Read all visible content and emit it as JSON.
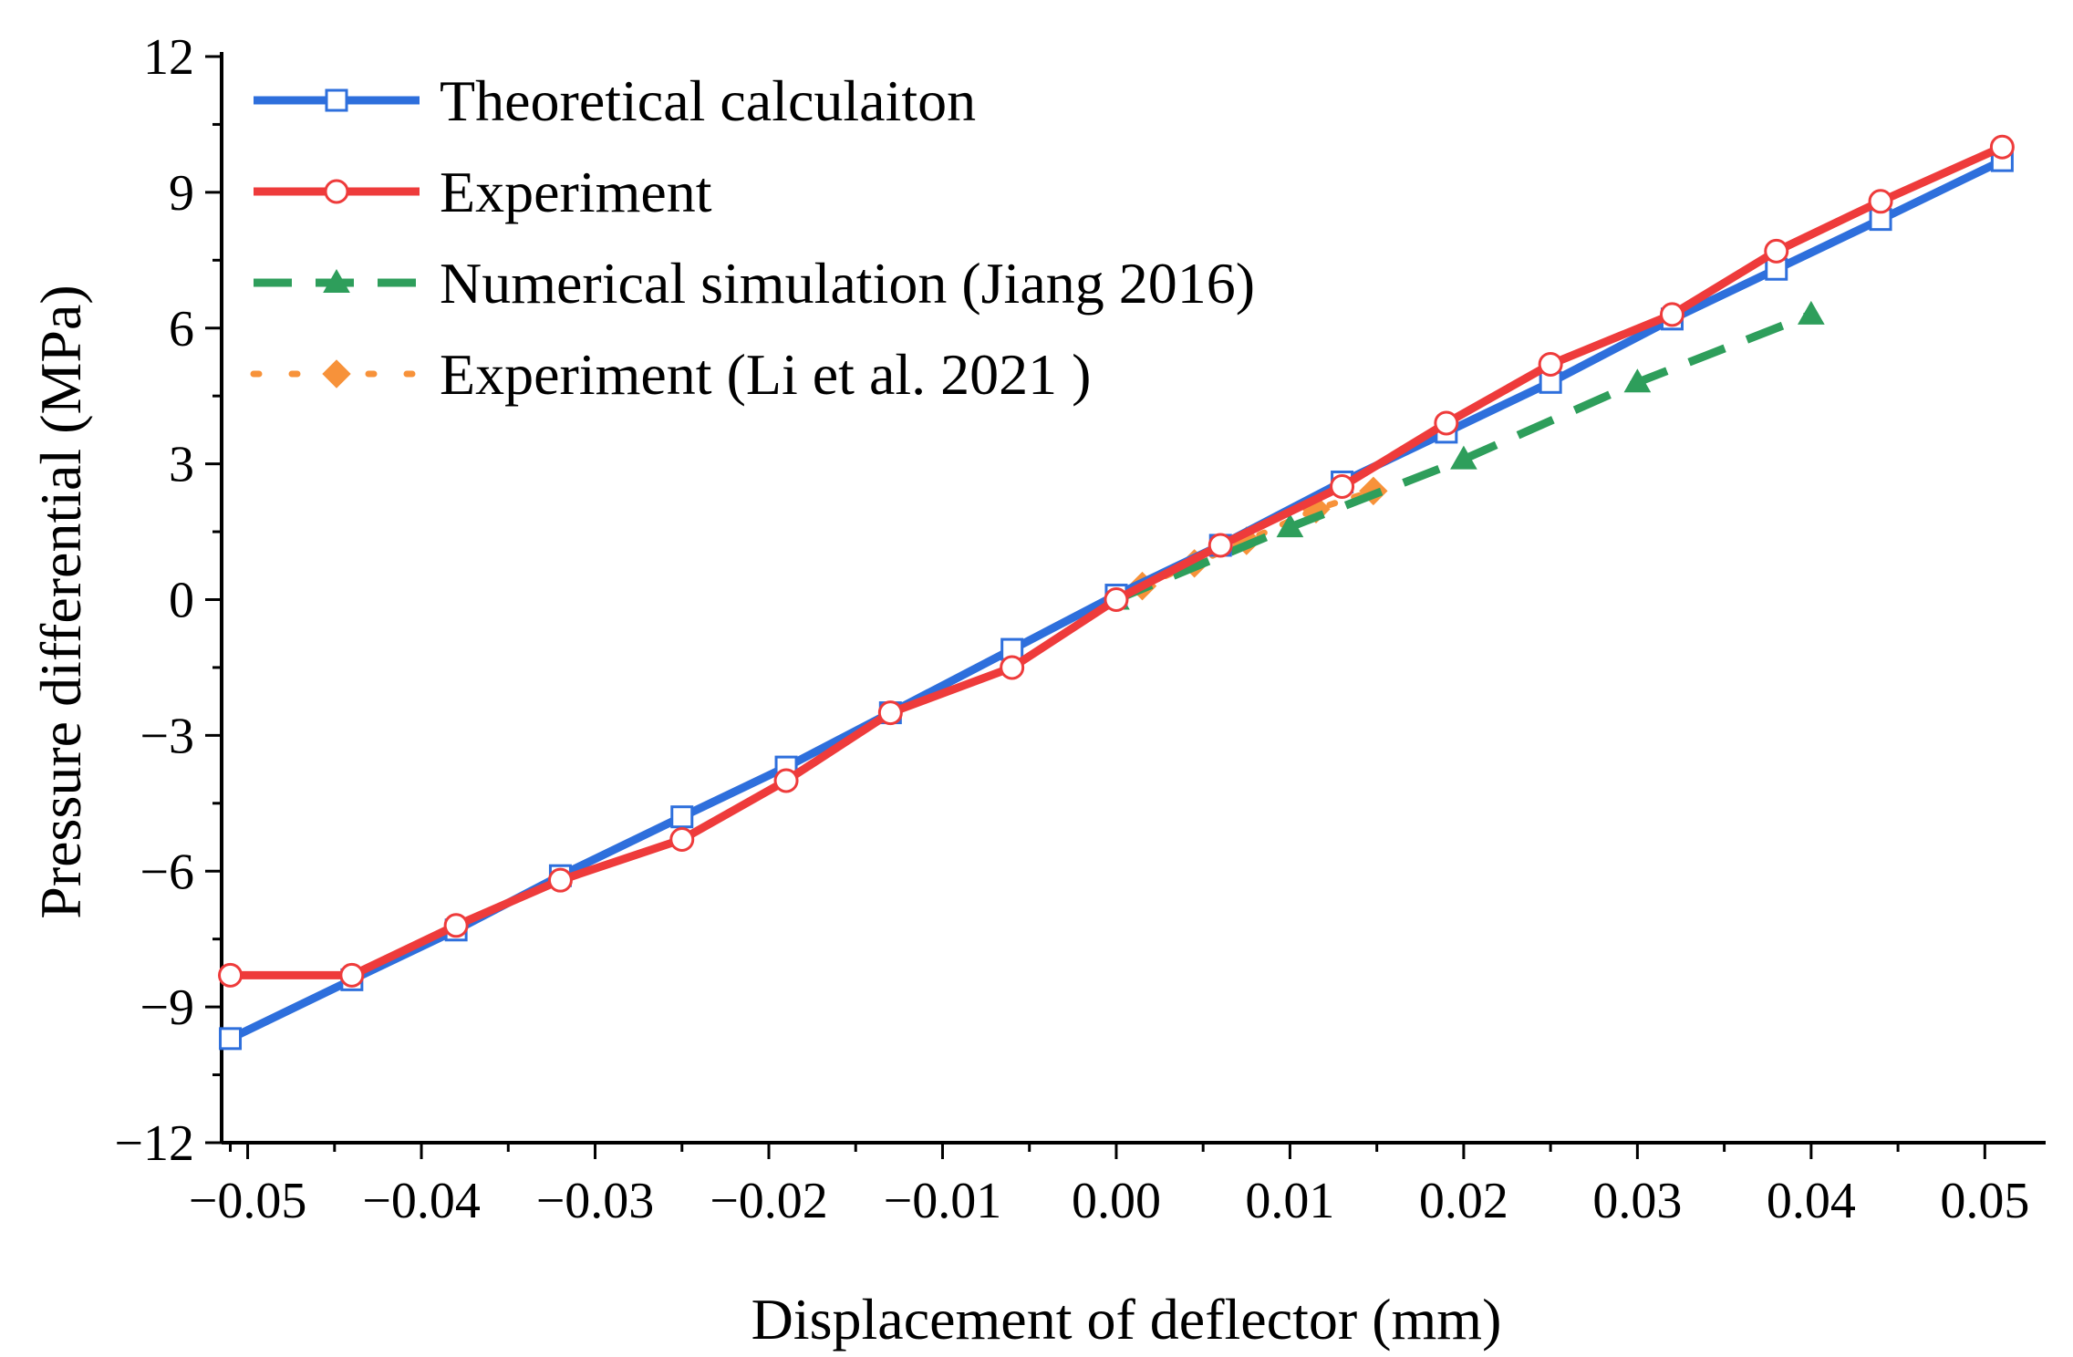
{
  "chart_data": {
    "type": "line",
    "title": "",
    "xlabel": "Displacement of deflector (mm)",
    "ylabel": "Pressure differential (MPa)",
    "xlim": [
      -0.0515,
      0.0535
    ],
    "ylim": [
      -12,
      12
    ],
    "xticks": [
      -0.05,
      -0.04,
      -0.03,
      -0.02,
      -0.01,
      0.0,
      0.01,
      0.02,
      0.03,
      0.04,
      0.05
    ],
    "xtick_labels": [
      "−0.05",
      "−0.04",
      "−0.03",
      "−0.02",
      "−0.01",
      "0.00",
      "0.01",
      "0.02",
      "0.03",
      "0.04",
      "0.05"
    ],
    "yticks": [
      -12,
      -9,
      -6,
      -3,
      0,
      3,
      6,
      9,
      12
    ],
    "ytick_labels": [
      "−12",
      "−9",
      "−6",
      "−3",
      "0",
      "3",
      "6",
      "9",
      "12"
    ],
    "grid": false,
    "legend_position": "top-left",
    "series": [
      {
        "name": "Theoretical calculaiton",
        "color": "#2e6fdc",
        "line_style": "solid",
        "marker": "square-open",
        "x": [
          -0.051,
          -0.044,
          -0.038,
          -0.032,
          -0.025,
          -0.019,
          -0.013,
          -0.006,
          0.0,
          0.006,
          0.013,
          0.019,
          0.025,
          0.032,
          0.038,
          0.044,
          0.051
        ],
        "y": [
          -9.7,
          -8.4,
          -7.3,
          -6.1,
          -4.8,
          -3.7,
          -2.5,
          -1.1,
          0.1,
          1.2,
          2.6,
          3.7,
          4.8,
          6.2,
          7.3,
          8.4,
          9.7
        ]
      },
      {
        "name": "Experiment",
        "color": "#ee3b3b",
        "line_style": "solid",
        "marker": "circle-open",
        "x": [
          -0.051,
          -0.044,
          -0.038,
          -0.032,
          -0.025,
          -0.019,
          -0.013,
          -0.006,
          0.0,
          0.006,
          0.013,
          0.019,
          0.025,
          0.032,
          0.038,
          0.044,
          0.051
        ],
        "y": [
          -8.3,
          -8.3,
          -7.2,
          -6.2,
          -5.3,
          -4.0,
          -2.5,
          -1.5,
          0.0,
          1.2,
          2.5,
          3.9,
          5.2,
          6.3,
          7.7,
          8.8,
          10.0
        ]
      },
      {
        "name": "Numerical simulation (Jiang 2016)",
        "color": "#2e9e5b",
        "line_style": "dashed",
        "marker": "triangle",
        "x": [
          0.0,
          0.01,
          0.02,
          0.03,
          0.04
        ],
        "y": [
          0.0,
          1.6,
          3.1,
          4.8,
          6.3
        ]
      },
      {
        "name": "Experiment (Li et al. 2021 )",
        "color": "#f7923a",
        "line_style": "dotted",
        "marker": "diamond",
        "x": [
          0.0015,
          0.0045,
          0.0075,
          0.0115,
          0.0148
        ],
        "y": [
          0.3,
          0.8,
          1.3,
          2.0,
          2.4
        ]
      }
    ]
  }
}
